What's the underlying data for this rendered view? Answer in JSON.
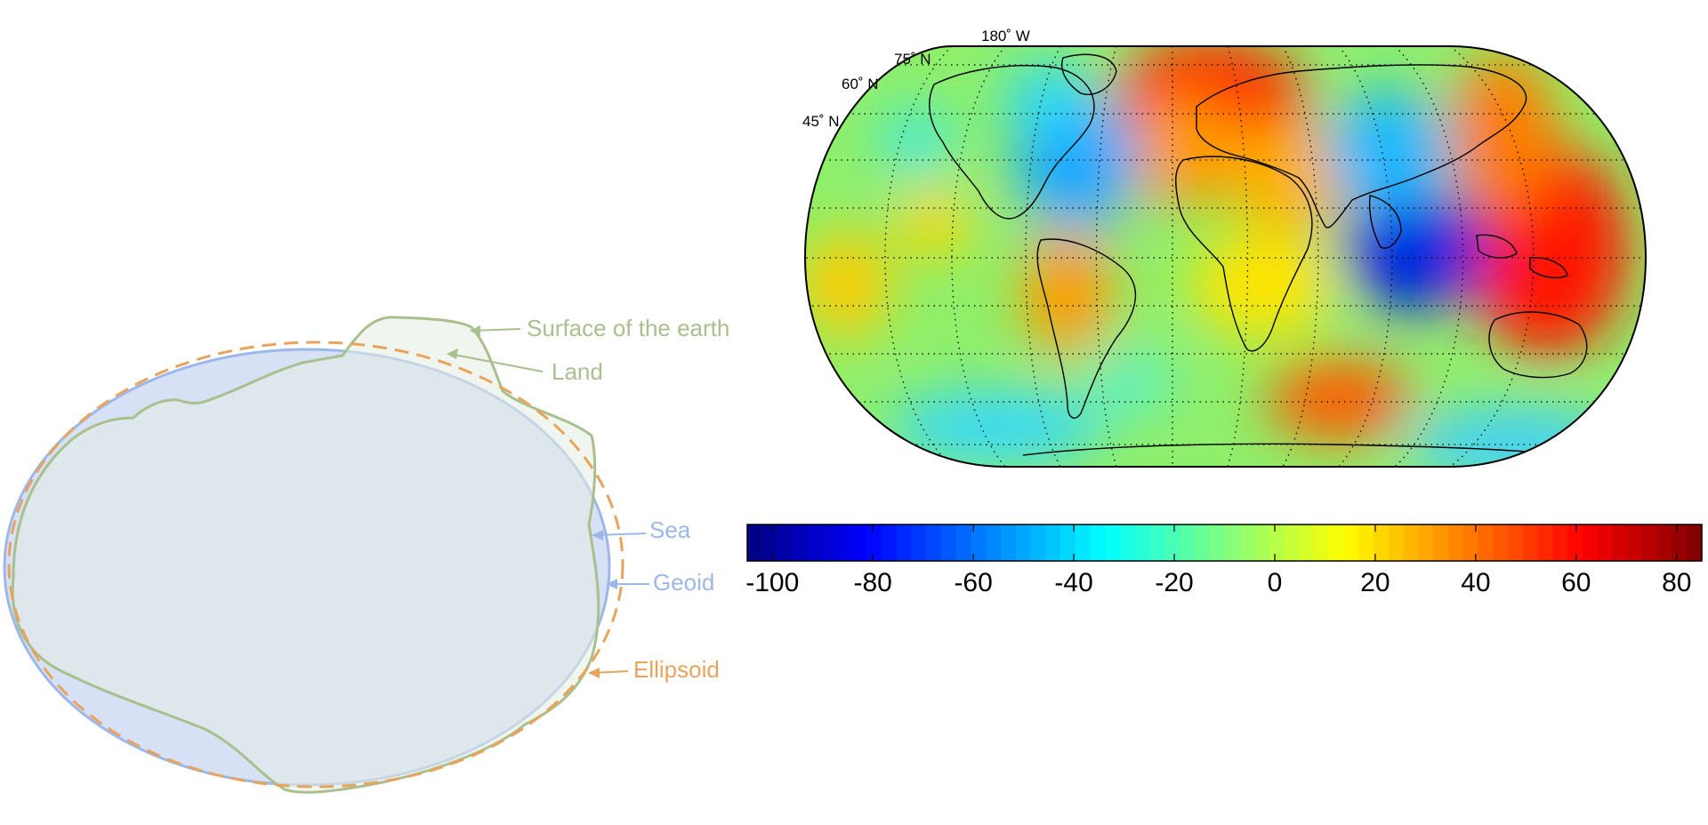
{
  "diagram": {
    "labels": {
      "surface": "Surface of the earth",
      "land": "Land",
      "sea": "Sea",
      "geoid": "Geoid",
      "ellipsoid": "Ellipsoid"
    },
    "colors": {
      "surface": "#a9c08e",
      "land_fill": "#eef2e8",
      "geoid_stroke": "#9db8e8",
      "geoid_fill": "#d6e1f5",
      "ellipsoid": "#e8a45c",
      "body_fill": "#e0e6e8"
    }
  },
  "map": {
    "top_label": "180˚ W",
    "lat_labels": [
      "75˚ N",
      "60˚ N",
      "45˚ N"
    ]
  },
  "colorbar": {
    "ticks": [
      "-100",
      "-80",
      "-60",
      "-40",
      "-20",
      "0",
      "20",
      "40",
      "60",
      "80"
    ],
    "min": -105,
    "max": 85,
    "colormap": "jet"
  }
}
